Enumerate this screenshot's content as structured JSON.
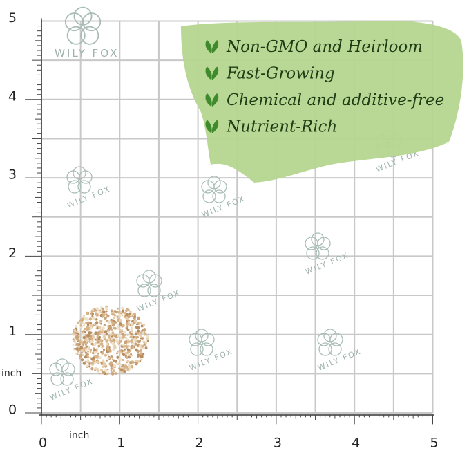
{
  "axis": {
    "x_labels": [
      "0",
      "1",
      "2",
      "3",
      "4",
      "5"
    ],
    "y_labels": [
      "0",
      "1",
      "2",
      "3",
      "4",
      "5"
    ],
    "unit": "inch"
  },
  "brand": "WILY FOX",
  "features": [
    "Non-GMO and Heirloom",
    "Fast-Growing",
    "Chemical and additive-free",
    "Nutrient-Rich"
  ]
}
